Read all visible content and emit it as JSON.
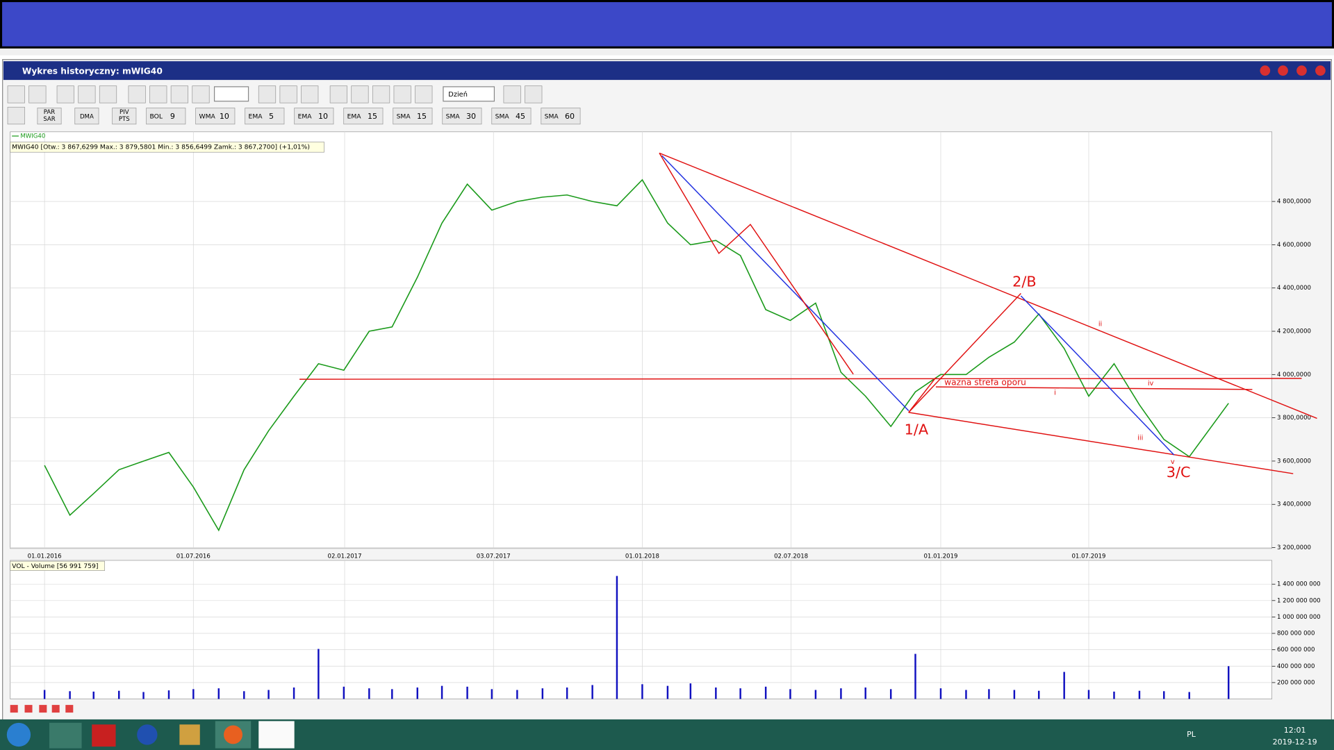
{
  "window": {
    "title": "Wykres historyczny: mWIG40"
  },
  "toolbar": {
    "interval": "Dzień",
    "buttons": [
      [
        "PAR",
        "SAR"
      ],
      [
        "DMA"
      ],
      [
        "PIV",
        "PTS"
      ]
    ],
    "indicators": [
      {
        "name": "BOL",
        "param": 9
      },
      {
        "name": "WMA",
        "param": 10
      },
      {
        "name": "EMA",
        "param": 5
      },
      {
        "name": "EMA",
        "param": 10
      },
      {
        "name": "EMA",
        "param": 15
      },
      {
        "name": "SMA",
        "param": 15
      },
      {
        "name": "SMA",
        "param": 30
      },
      {
        "name": "SMA",
        "param": 45
      },
      {
        "name": "SMA",
        "param": 60
      }
    ]
  },
  "chart": {
    "type": "line",
    "legend": "MWIG40",
    "color": "#1a9a1a",
    "info": "MWIG40 [Otw.: 3 867,6299  Max.: 3 879,5801  Min.: 3 856,6499  Zamk.: 3 867,2700] (+1,01%)",
    "x": [
      "01.01.2016",
      "01.02.2016",
      "01.03.2016",
      "01.04.2016",
      "01.05.2016",
      "01.06.2016",
      "01.07.2016",
      "01.08.2016",
      "01.09.2016",
      "01.10.2016",
      "01.11.2016",
      "01.12.2016",
      "01.01.2017",
      "01.02.2017",
      "01.03.2017",
      "01.04.2017",
      "01.05.2017",
      "01.06.2017",
      "01.07.2017",
      "01.08.2017",
      "01.09.2017",
      "01.10.2017",
      "01.11.2017",
      "01.12.2017",
      "01.01.2018",
      "01.02.2018",
      "01.03.2018",
      "01.04.2018",
      "01.05.2018",
      "01.06.2018",
      "01.07.2018",
      "01.08.2018",
      "01.09.2018",
      "01.10.2018",
      "01.11.2018",
      "01.12.2018",
      "01.01.2019",
      "01.02.2019",
      "01.03.2019",
      "01.04.2019",
      "01.05.2019",
      "01.06.2019",
      "01.07.2019",
      "01.08.2019",
      "01.09.2019",
      "01.10.2019",
      "01.11.2019",
      "19.12.2019"
    ],
    "values": [
      3580,
      3350,
      3450,
      3560,
      3600,
      3640,
      3480,
      3280,
      3560,
      3740,
      3900,
      4050,
      4020,
      4200,
      4220,
      4450,
      4700,
      4880,
      4760,
      4800,
      4820,
      4830,
      4800,
      4780,
      4900,
      4700,
      4600,
      4620,
      4550,
      4300,
      4250,
      4330,
      4010,
      3900,
      3760,
      3920,
      4000,
      4000,
      4080,
      4150,
      4280,
      4120,
      3900,
      4050,
      3860,
      3700,
      3620,
      3867.27
    ],
    "xlim": [
      "20.11.2015",
      "10.02.2020"
    ],
    "xticks": [
      "01.01.2016",
      "01.07.2016",
      "02.01.2017",
      "03.07.2017",
      "01.01.2018",
      "02.07.2018",
      "01.01.2019",
      "01.07.2019"
    ],
    "ylim": [
      3196,
      5122
    ],
    "yticks": [
      {
        "value": 3200,
        "label": "3 200,0000"
      },
      {
        "value": 3400,
        "label": "3 400,0000"
      },
      {
        "value": 3600,
        "label": "3 600,0000"
      },
      {
        "value": 3800,
        "label": "3 800,0000"
      },
      {
        "value": 4000,
        "label": "4 000,0000"
      },
      {
        "value": 4200,
        "label": "4 200,0000"
      },
      {
        "value": 4400,
        "label": "4 400,0000"
      },
      {
        "value": 4600,
        "label": "4 600,0000"
      },
      {
        "value": 4800,
        "label": "4 800,0000"
      }
    ],
    "volume": {
      "label": "VOL - Volume [56 991 759]",
      "color": "#1010c0",
      "values": [
        110000000,
        95000000,
        90000000,
        100000000,
        85000000,
        105000000,
        120000000,
        130000000,
        95000000,
        110000000,
        140000000,
        610000000,
        150000000,
        130000000,
        120000000,
        140000000,
        160000000,
        150000000,
        120000000,
        110000000,
        130000000,
        140000000,
        170000000,
        1500000000,
        180000000,
        160000000,
        190000000,
        140000000,
        130000000,
        150000000,
        120000000,
        110000000,
        130000000,
        140000000,
        120000000,
        550000000,
        130000000,
        110000000,
        120000000,
        110000000,
        100000000,
        330000000,
        110000000,
        90000000,
        100000000,
        95000000,
        85000000,
        400000000
      ],
      "ylim": [
        0,
        1690000000
      ],
      "yticks": [
        {
          "value": 200000000,
          "label": "200 000 000"
        },
        {
          "value": 400000000,
          "label": "400 000 000"
        },
        {
          "value": 600000000,
          "label": "600 000 000"
        },
        {
          "value": 800000000,
          "label": "800 000 000"
        },
        {
          "value": 1000000000,
          "label": "1 000 000 000"
        },
        {
          "value": 1200000000,
          "label": "1 200 000 000"
        },
        {
          "value": 1400000000,
          "label": "1 400 000 000"
        }
      ]
    },
    "annotations": {
      "resistance": "wazna strefa oporu",
      "waves": [
        "1/A",
        "2/B",
        "3/C",
        "i",
        "ii",
        "iii",
        "iv",
        "v"
      ]
    }
  },
  "taskbar": {
    "language": "PL",
    "time": "12:01",
    "date": "2019-12-19"
  }
}
